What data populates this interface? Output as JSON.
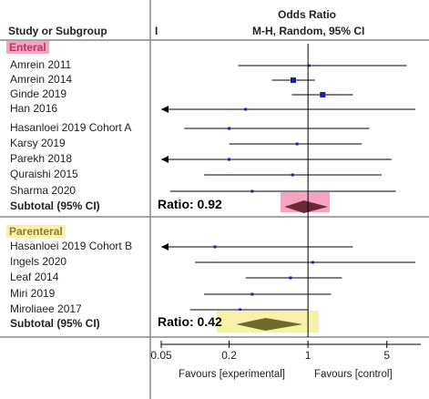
{
  "header": {
    "col_study": "Study or Subgroup",
    "col_mark": "I",
    "col_effect": "Odds Ratio",
    "col_method": "M-H, Random, 95% CI"
  },
  "groups": [
    {
      "label": "Enteral",
      "color": "#f5a3c0",
      "text_color": "#b23a62"
    },
    {
      "label": "Parenteral",
      "color": "#f7f0a8",
      "text_color": "#8a7f2a"
    }
  ],
  "subtotal_label": "Subtotal (95% CI)",
  "ratio_annotations": [
    "Ratio: 0.92",
    "Ratio: 0.42"
  ],
  "axis": {
    "ticks": [
      "0.05",
      "0.2",
      "1",
      "5"
    ],
    "favours_left": "Favours [experimental]",
    "favours_right": "Favours [control]"
  },
  "chart_data": {
    "type": "forest",
    "x_scale": "log",
    "xlim": [
      0.05,
      10
    ],
    "null_value": 1,
    "colors": {
      "marker": "#1f1f99",
      "diamond": "#6b2a3a",
      "diamond2": "#6e6a2a",
      "line": "#000000"
    },
    "series": [
      {
        "name": "Enteral",
        "studies": [
          {
            "study": "Amrein 2011",
            "or": 1.02,
            "lo": 0.24,
            "hi": 7.5,
            "arrow_lo": false
          },
          {
            "study": "Amrein 2014",
            "or": 0.74,
            "lo": 0.48,
            "hi": 1.15,
            "arrow_lo": false
          },
          {
            "study": "Ginde 2019",
            "or": 1.35,
            "lo": 0.72,
            "hi": 2.5,
            "arrow_lo": false
          },
          {
            "study": "Han 2016",
            "or": 0.28,
            "lo": 0.05,
            "hi": 9.0,
            "arrow_lo": true
          },
          {
            "study": "Hasanloei 2019 Cohort A",
            "or": 0.2,
            "lo": 0.08,
            "hi": 3.5,
            "arrow_lo": false
          },
          {
            "study": "Karsy 2019",
            "or": 0.8,
            "lo": 0.2,
            "hi": 3.0,
            "arrow_lo": false
          },
          {
            "study": "Parekh 2018",
            "or": 0.2,
            "lo": 0.05,
            "hi": 5.5,
            "arrow_lo": true
          },
          {
            "study": "Quraishi 2015",
            "or": 0.73,
            "lo": 0.12,
            "hi": 4.5,
            "arrow_lo": false
          },
          {
            "study": "Sharma 2020",
            "or": 0.32,
            "lo": 0.06,
            "hi": 6.0,
            "arrow_lo": false
          }
        ],
        "subtotal": {
          "or": 0.92,
          "lo": 0.62,
          "hi": 1.5
        }
      },
      {
        "name": "Parenteral",
        "studies": [
          {
            "study": "Hasanloei 2019 Cohort B",
            "or": 0.15,
            "lo": 0.05,
            "hi": 2.5,
            "arrow_lo": true
          },
          {
            "study": "Ingels 2020",
            "or": 1.1,
            "lo": 0.1,
            "hi": 12.0,
            "arrow_lo": false
          },
          {
            "study": "Leaf 2014",
            "or": 0.7,
            "lo": 0.28,
            "hi": 2.0,
            "arrow_lo": false
          },
          {
            "study": "Miri 2019",
            "or": 0.32,
            "lo": 0.12,
            "hi": 1.6,
            "arrow_lo": false
          },
          {
            "study": "Miroliaee 2017",
            "or": 0.25,
            "lo": 0.09,
            "hi": 1.0,
            "arrow_lo": false
          }
        ],
        "subtotal": {
          "or": 0.42,
          "lo": 0.23,
          "hi": 0.9
        }
      }
    ]
  }
}
